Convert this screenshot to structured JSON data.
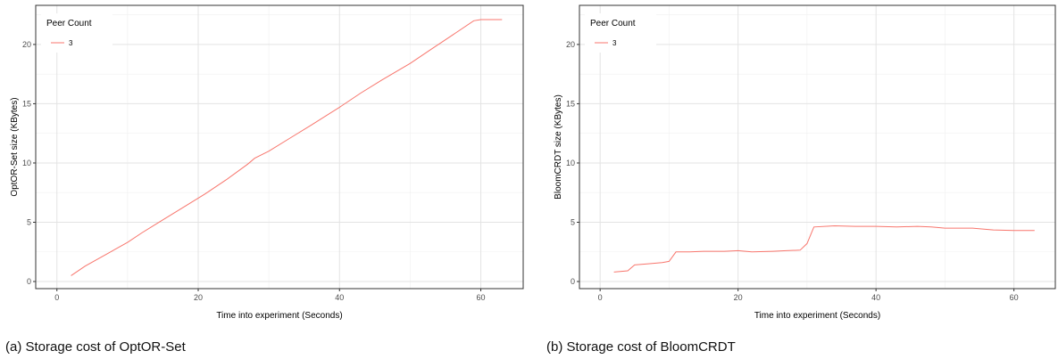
{
  "chart_data": [
    {
      "type": "line",
      "xlabel": "Time into experiment (Seconds)",
      "ylabel": "OptOR-Set size (KBytes)",
      "xlim": [
        -3,
        66
      ],
      "ylim": [
        -0.6,
        23.3
      ],
      "x_ticks": [
        0,
        20,
        40,
        60
      ],
      "y_ticks": [
        0,
        5,
        10,
        15,
        20
      ],
      "grid": true,
      "legend": {
        "title": "Peer Count",
        "placement": "top-left"
      },
      "caption": "(a) Storage cost of OptOR-Set",
      "series": [
        {
          "name": "3",
          "color": "#F8766D",
          "x": [
            2,
            4,
            7,
            10,
            12,
            15,
            18,
            21,
            24,
            27,
            28,
            30,
            33,
            36,
            40,
            43,
            46,
            50,
            53,
            56,
            59,
            60,
            63
          ],
          "y": [
            0.5,
            1.3,
            2.3,
            3.3,
            4.1,
            5.2,
            6.3,
            7.4,
            8.6,
            9.9,
            10.4,
            11.0,
            12.1,
            13.2,
            14.7,
            15.9,
            17.0,
            18.4,
            19.6,
            20.8,
            22.0,
            22.1,
            22.1
          ]
        }
      ]
    },
    {
      "type": "line",
      "xlabel": "Time into experiment (Seconds)",
      "ylabel": "BloomCRDT size (KBytes)",
      "xlim": [
        -3,
        66
      ],
      "ylim": [
        -0.6,
        23.3
      ],
      "x_ticks": [
        0,
        20,
        40,
        60
      ],
      "y_ticks": [
        0,
        5,
        10,
        15,
        20
      ],
      "grid": true,
      "legend": {
        "title": "Peer Count",
        "placement": "top-left"
      },
      "caption": "(b) Storage cost of BloomCRDT",
      "series": [
        {
          "name": "3",
          "color": "#F8766D",
          "x": [
            2,
            4,
            5,
            7,
            9,
            10,
            11,
            13,
            15,
            18,
            20,
            22,
            25,
            27,
            29,
            30,
            31,
            34,
            37,
            40,
            43,
            46,
            48,
            50,
            54,
            57,
            60,
            63
          ],
          "y": [
            0.8,
            0.9,
            1.4,
            1.5,
            1.6,
            1.7,
            2.5,
            2.5,
            2.55,
            2.55,
            2.6,
            2.5,
            2.55,
            2.6,
            2.65,
            3.2,
            4.6,
            4.7,
            4.65,
            4.65,
            4.6,
            4.65,
            4.6,
            4.5,
            4.5,
            4.35,
            4.3,
            4.3
          ]
        }
      ]
    }
  ]
}
